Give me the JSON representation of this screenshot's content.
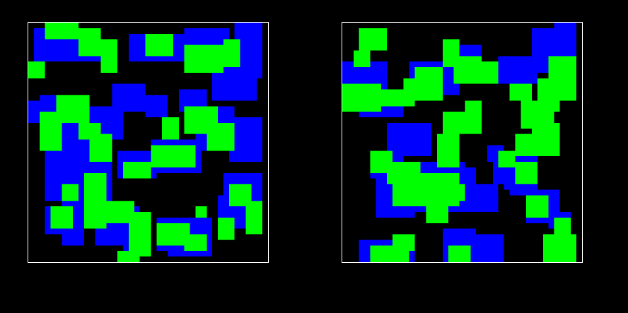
{
  "figure": {
    "background_color": "#000000",
    "frame_color": "#ffffff",
    "palette": {
      "empty": "#000000",
      "outer_region": "#0000ff",
      "inner_region": "#00ff00"
    }
  },
  "panels": [
    {
      "name": "left-panel",
      "blue_blobs": [
        [
          1,
          1,
          12,
          6
        ],
        [
          18,
          2,
          10,
          5
        ],
        [
          28,
          1,
          8,
          8
        ],
        [
          33,
          4,
          8,
          10
        ],
        [
          37,
          0,
          5,
          10
        ],
        [
          0,
          14,
          5,
          4
        ],
        [
          3,
          19,
          10,
          9
        ],
        [
          10,
          15,
          7,
          6
        ],
        [
          15,
          11,
          6,
          5
        ],
        [
          2,
          13,
          7,
          6
        ],
        [
          21,
          13,
          4,
          4
        ],
        [
          27,
          12,
          5,
          4
        ],
        [
          30,
          15,
          7,
          8
        ],
        [
          22,
          21,
          9,
          6
        ],
        [
          16,
          23,
          7,
          5
        ],
        [
          9,
          24,
          6,
          6
        ],
        [
          3,
          27,
          7,
          5
        ],
        [
          36,
          17,
          6,
          8
        ],
        [
          10,
          23,
          5,
          13
        ],
        [
          12,
          33,
          8,
          7
        ],
        [
          17,
          38,
          3,
          5
        ],
        [
          3,
          33,
          5,
          5
        ],
        [
          6,
          32,
          4,
          8
        ],
        [
          23,
          35,
          10,
          6
        ],
        [
          25,
          38,
          8,
          4
        ],
        [
          34,
          31,
          6,
          6
        ],
        [
          35,
          27,
          7,
          6
        ]
      ],
      "green_blobs": [
        [
          3,
          0,
          6,
          3
        ],
        [
          9,
          1,
          4,
          5
        ],
        [
          13,
          3,
          3,
          6
        ],
        [
          21,
          2,
          5,
          4
        ],
        [
          28,
          4,
          7,
          5
        ],
        [
          35,
          3,
          3,
          5
        ],
        [
          0,
          7,
          3,
          3
        ],
        [
          5,
          13,
          6,
          5
        ],
        [
          2,
          16,
          4,
          7
        ],
        [
          9,
          18,
          4,
          3
        ],
        [
          11,
          20,
          4,
          5
        ],
        [
          28,
          15,
          6,
          5
        ],
        [
          32,
          18,
          5,
          5
        ],
        [
          22,
          22,
          8,
          4
        ],
        [
          17,
          25,
          5,
          3
        ],
        [
          24,
          17,
          3,
          4
        ],
        [
          10,
          27,
          4,
          10
        ],
        [
          14,
          32,
          5,
          4
        ],
        [
          18,
          34,
          4,
          8
        ],
        [
          16,
          41,
          4,
          2
        ],
        [
          4,
          33,
          4,
          4
        ],
        [
          6,
          29,
          3,
          3
        ],
        [
          23,
          36,
          6,
          4
        ],
        [
          28,
          38,
          4,
          3
        ],
        [
          36,
          29,
          4,
          4
        ],
        [
          39,
          32,
          3,
          6
        ],
        [
          34,
          35,
          3,
          4
        ],
        [
          30,
          33,
          2,
          2
        ]
      ]
    },
    {
      "name": "right-panel",
      "blue_blobs": [
        [
          0,
          7,
          8,
          6
        ],
        [
          3,
          12,
          8,
          5
        ],
        [
          12,
          7,
          9,
          6
        ],
        [
          19,
          4,
          6,
          4
        ],
        [
          28,
          6,
          7,
          5
        ],
        [
          34,
          1,
          8,
          8
        ],
        [
          38,
          0,
          4,
          6
        ],
        [
          8,
          18,
          8,
          6
        ],
        [
          5,
          23,
          6,
          5
        ],
        [
          12,
          25,
          10,
          9
        ],
        [
          6,
          28,
          7,
          7
        ],
        [
          18,
          26,
          6,
          6
        ],
        [
          22,
          29,
          6,
          5
        ],
        [
          26,
          22,
          3,
          3
        ],
        [
          27,
          23,
          5,
          6
        ],
        [
          29,
          26,
          4,
          4
        ],
        [
          31,
          21,
          4,
          6
        ],
        [
          30,
          27,
          5,
          4
        ],
        [
          33,
          30,
          6,
          6
        ],
        [
          37,
          34,
          4,
          3
        ],
        [
          3,
          39,
          10,
          4
        ],
        [
          18,
          37,
          6,
          6
        ],
        [
          24,
          38,
          5,
          5
        ]
      ],
      "green_blobs": [
        [
          3,
          1,
          5,
          4
        ],
        [
          2,
          5,
          3,
          3
        ],
        [
          0,
          11,
          7,
          5
        ],
        [
          7,
          12,
          6,
          3
        ],
        [
          11,
          10,
          6,
          4
        ],
        [
          13,
          8,
          5,
          6
        ],
        [
          18,
          3,
          3,
          5
        ],
        [
          20,
          6,
          5,
          5
        ],
        [
          24,
          7,
          4,
          4
        ],
        [
          30,
          11,
          4,
          3
        ],
        [
          35,
          10,
          4,
          6
        ],
        [
          37,
          6,
          5,
          8
        ],
        [
          32,
          14,
          6,
          5
        ],
        [
          34,
          18,
          5,
          6
        ],
        [
          31,
          20,
          4,
          4
        ],
        [
          18,
          16,
          7,
          4
        ],
        [
          22,
          14,
          3,
          3
        ],
        [
          17,
          20,
          4,
          6
        ],
        [
          5,
          23,
          4,
          4
        ],
        [
          8,
          25,
          6,
          4
        ],
        [
          12,
          27,
          9,
          6
        ],
        [
          9,
          29,
          5,
          4
        ],
        [
          15,
          32,
          4,
          4
        ],
        [
          19,
          29,
          3,
          3
        ],
        [
          28,
          23,
          3,
          3
        ],
        [
          31,
          25,
          4,
          4
        ],
        [
          33,
          31,
          4,
          4
        ],
        [
          5,
          40,
          7,
          3
        ],
        [
          9,
          38,
          4,
          3
        ],
        [
          19,
          40,
          4,
          3
        ],
        [
          36,
          38,
          6,
          5
        ],
        [
          38,
          35,
          3,
          3
        ]
      ]
    }
  ]
}
